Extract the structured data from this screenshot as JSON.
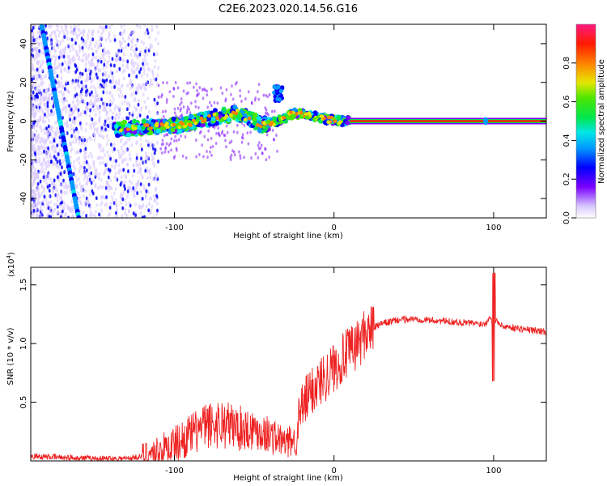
{
  "title": "C2E6.2023.020.14.56.G16",
  "chart_data": [
    {
      "type": "heatmap",
      "xlabel": "Height of straight line (km)",
      "ylabel": "Frequency (Hz)",
      "xlim": [
        -190,
        133
      ],
      "ylim": [
        -50,
        50
      ],
      "x_ticks": [
        -100,
        0,
        100
      ],
      "x_tick_labels": [
        "-100",
        "0",
        "100"
      ],
      "y_ticks": [
        -40,
        -20,
        0,
        20,
        40
      ],
      "y_tick_labels": [
        "-40",
        "-20",
        "0",
        "20",
        "40"
      ],
      "colorbar": {
        "label": "Normalized spectral amplitude",
        "ticks": [
          0.0,
          0.2,
          0.4,
          0.6,
          0.8
        ],
        "tick_labels": [
          "0.0",
          "0.2",
          "0.4",
          "0.6",
          "0.8"
        ],
        "range": [
          0,
          1
        ]
      },
      "features": [
        {
          "name": "Diagonal streak",
          "x": [
            -183,
            -160
          ],
          "y": [
            49,
            -50
          ],
          "value": 0.2
        },
        {
          "name": "Main band",
          "x": [
            -135,
            -95,
            -75,
            -60,
            -45,
            -35,
            -25,
            -15,
            -5,
            5,
            133
          ],
          "y": [
            -4,
            -2,
            2,
            4,
            -2,
            0,
            4,
            3,
            1,
            0,
            0
          ]
        },
        {
          "name": "Upper lobe",
          "x": [
            -38,
            -32
          ],
          "y": [
            10,
            18
          ]
        },
        {
          "name": "Narrow line",
          "x": [
            10,
            133
          ],
          "y": [
            0,
            0
          ],
          "value": 0.85
        }
      ]
    },
    {
      "type": "line",
      "xlabel": "Height of straight line (km)",
      "ylabel": "SNR (10 * v/v)",
      "y_scale_label": "(x10",
      "y_scale_exp": "4",
      "xlim": [
        -190,
        133
      ],
      "ylim": [
        0,
        1.65
      ],
      "x_ticks": [
        -100,
        0,
        100
      ],
      "x_tick_labels": [
        "-100",
        "0",
        "100"
      ],
      "y_ticks": [
        0.5,
        1.0,
        1.5
      ],
      "y_tick_labels": [
        "0.5",
        "1.0",
        "1.5"
      ],
      "color": "#ee2222",
      "x": [
        -190,
        -170,
        -150,
        -130,
        -120,
        -110,
        -100,
        -90,
        -80,
        -70,
        -60,
        -50,
        -40,
        -30,
        -25,
        -20,
        -15,
        -10,
        -5,
        0,
        5,
        10,
        15,
        20,
        30,
        40,
        50,
        60,
        70,
        80,
        90,
        95,
        98,
        100,
        102,
        105,
        110,
        120,
        133
      ],
      "y": [
        0.04,
        0.03,
        0.02,
        0.02,
        0.04,
        0.08,
        0.14,
        0.22,
        0.3,
        0.32,
        0.28,
        0.27,
        0.22,
        0.15,
        0.18,
        0.45,
        0.58,
        0.66,
        0.73,
        0.8,
        0.87,
        0.93,
        1.0,
        1.1,
        1.17,
        1.2,
        1.21,
        1.2,
        1.19,
        1.18,
        1.17,
        1.17,
        1.25,
        1.1,
        1.2,
        1.15,
        1.14,
        1.12,
        1.1
      ]
    }
  ]
}
